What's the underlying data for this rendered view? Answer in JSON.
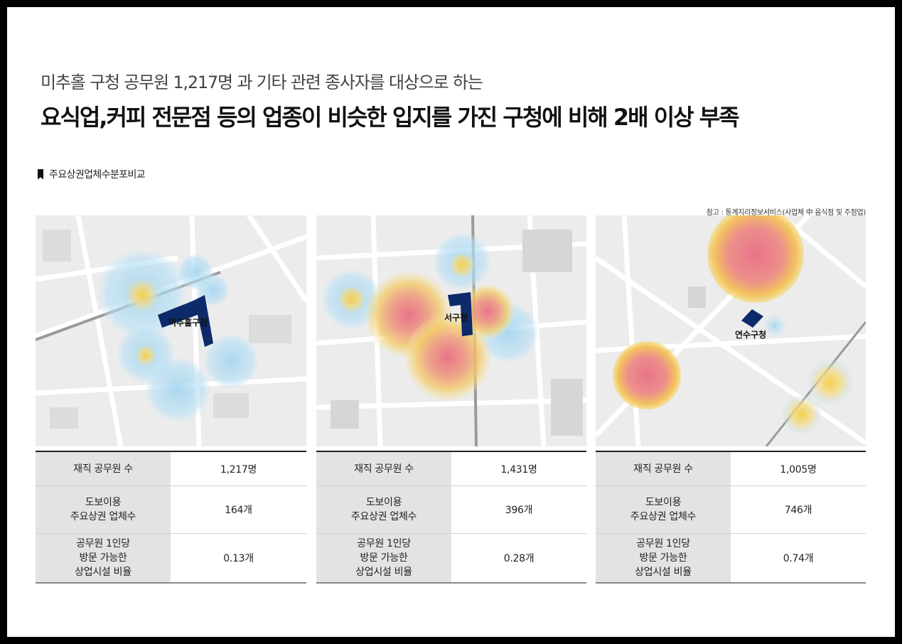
{
  "header": {
    "subtitle": "미추홀 구청 공무원 1,217명 과 기타 관련 종사자를 대상으로 하는",
    "headline": "요식업,커피 전문점 등의 업종이 비슷한 입지를 가진 구청에 비해 2배 이상 부족"
  },
  "section_title": "주요상권업체수분포비교",
  "source_note": "참고 : 통계지리정보서비스(사업체 中 음식점 및 주점업)",
  "colors": {
    "building": "#0d2a6b",
    "heat_blue": "#a8d8f0",
    "heat_yellow": "#f6d15a",
    "heat_red": "#e8738a"
  },
  "panels": [
    {
      "map_label": "미추홀구청",
      "rows": [
        {
          "label": "재직 공무원 수",
          "value": "1,217명"
        },
        {
          "label": "도보이용\n주요상권 업체수",
          "value": "164개"
        },
        {
          "label": "공무원 1인당\n방문 가능한\n상업시설 비율",
          "value": "0.13개"
        }
      ]
    },
    {
      "map_label": "서구청",
      "rows": [
        {
          "label": "재직 공무원 수",
          "value": "1,431명"
        },
        {
          "label": "도보이용\n주요상권 업체수",
          "value": "396개"
        },
        {
          "label": "공무원 1인당\n방문 가능한\n상업시설 비율",
          "value": "0.28개"
        }
      ]
    },
    {
      "map_label": "연수구청",
      "rows": [
        {
          "label": "재직 공무원 수",
          "value": "1,005명"
        },
        {
          "label": "도보이용\n주요상권 업체수",
          "value": "746개"
        },
        {
          "label": "공무원 1인당\n방문 가능한\n상업시설 비율",
          "value": "0.74개"
        }
      ]
    }
  ]
}
